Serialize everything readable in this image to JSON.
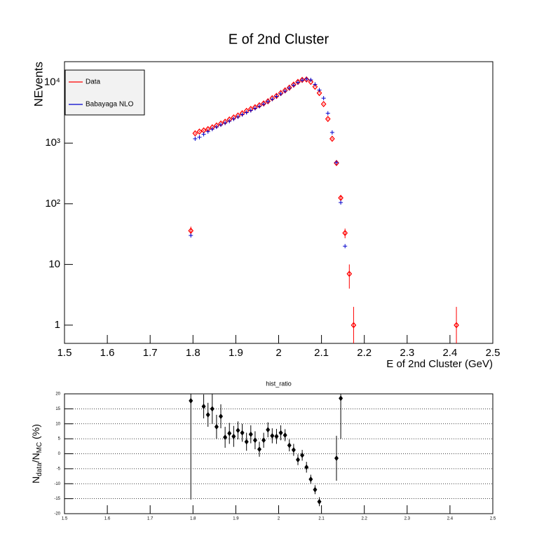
{
  "chart_data": [
    {
      "type": "scatter",
      "title": "E of 2nd Cluster",
      "xlabel": "E of 2nd Cluster (GeV)",
      "ylabel": "NEvents",
      "log_y": true,
      "legend": "top-left",
      "xlim": [
        1.5,
        2.5
      ],
      "xticks": [
        1.5,
        1.6,
        1.7,
        1.8,
        1.9,
        2,
        2.1,
        2.2,
        2.3,
        2.4,
        2.5
      ],
      "ylim": [
        0.5,
        22000
      ],
      "yticks": [
        1,
        10,
        {
          "value": 100,
          "label": "10²"
        },
        {
          "value": 1000,
          "label": "10³"
        },
        {
          "value": 10000,
          "label": "10⁴"
        }
      ],
      "x": [
        1.795,
        1.805,
        1.815,
        1.825,
        1.835,
        1.845,
        1.855,
        1.865,
        1.875,
        1.885,
        1.895,
        1.905,
        1.915,
        1.925,
        1.935,
        1.945,
        1.955,
        1.965,
        1.975,
        1.985,
        1.995,
        2.005,
        2.015,
        2.025,
        2.035,
        2.045,
        2.055,
        2.065,
        2.075,
        2.085,
        2.095,
        2.105,
        2.115,
        2.125,
        2.135,
        2.145,
        2.155,
        2.165,
        2.175,
        2.415
      ],
      "series": [
        {
          "name": "Data",
          "color": "#ff0000",
          "marker": "open-diamond",
          "values": [
            36,
            1450,
            1550,
            1620,
            1700,
            1820,
            1950,
            2100,
            2250,
            2450,
            2650,
            2850,
            3100,
            3400,
            3650,
            3900,
            4200,
            4500,
            4900,
            5500,
            6000,
            6700,
            7400,
            8200,
            9200,
            10200,
            11000,
            11200,
            10200,
            8500,
            6700,
            4400,
            2500,
            1180,
            470,
            125,
            33,
            7,
            1,
            1
          ],
          "errors": [
            6,
            38,
            39,
            40,
            41,
            43,
            44,
            46,
            47,
            49,
            51,
            53,
            56,
            58,
            60,
            62,
            65,
            67,
            70,
            74,
            77,
            82,
            86,
            91,
            96,
            101,
            105,
            106,
            101,
            92,
            82,
            66,
            50,
            34,
            22,
            11,
            6,
            3,
            1,
            1
          ]
        },
        {
          "name": "Babayaga NLO",
          "color": "#0000cc",
          "marker": "cross",
          "values": [
            30,
            1180,
            1250,
            1400,
            1550,
            1700,
            1850,
            2000,
            2150,
            2300,
            2500,
            2700,
            2950,
            3200,
            3450,
            3750,
            4050,
            4400,
            4850,
            5300,
            5900,
            6500,
            7200,
            8100,
            9000,
            10000,
            10900,
            11400,
            11000,
            9300,
            7500,
            5500,
            3100,
            1500,
            480,
            105,
            20,
            null,
            null,
            null
          ]
        }
      ]
    },
    {
      "type": "scatter",
      "title": "hist_ratio",
      "ylabel_parts": [
        "N",
        "data",
        "/N",
        "MC",
        " (%)"
      ],
      "grid": true,
      "xlim": [
        1.5,
        2.5
      ],
      "xticks": [
        1.5,
        1.6,
        1.7,
        1.8,
        1.9,
        2,
        2.1,
        2.2,
        2.3,
        2.4,
        2.5
      ],
      "ylim": [
        -20,
        20
      ],
      "yticks": [
        -20,
        -15,
        -10,
        -5,
        0,
        5,
        10,
        15,
        20
      ],
      "x": [
        1.795,
        1.825,
        1.835,
        1.845,
        1.855,
        1.865,
        1.875,
        1.885,
        1.895,
        1.905,
        1.915,
        1.925,
        1.935,
        1.945,
        1.955,
        1.965,
        1.975,
        1.985,
        1.995,
        2.005,
        2.015,
        2.025,
        2.035,
        2.045,
        2.055,
        2.065,
        2.075,
        2.085,
        2.095,
        2.135,
        2.145
      ],
      "series": [
        {
          "color": "#000000",
          "marker": "filled-diamond",
          "values": [
            17.7,
            15.8,
            13,
            15,
            9,
            12.5,
            5.5,
            6.8,
            5.8,
            7.8,
            7,
            4,
            6.5,
            4.5,
            1.5,
            4.5,
            8,
            6,
            5.8,
            7,
            6.2,
            2.8,
            1.3,
            -2,
            -0.5,
            -4.5,
            -8.5,
            -12,
            -16,
            -1.5,
            18.5
          ],
          "errors": [
            33,
            4,
            4,
            5,
            4,
            4,
            3.5,
            3.5,
            3.5,
            3,
            3,
            3,
            3,
            3,
            2.5,
            2.5,
            2.5,
            2.5,
            2.5,
            2.5,
            2,
            2,
            2,
            1.8,
            1.8,
            1.8,
            1.5,
            1.5,
            1.5,
            7.5,
            13.5
          ]
        }
      ]
    }
  ]
}
